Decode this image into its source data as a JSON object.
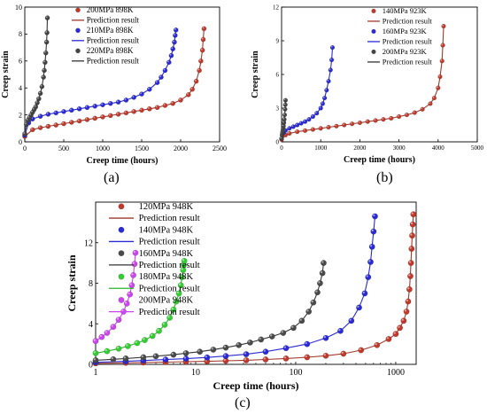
{
  "figure": {
    "panels": [
      {
        "label": "(a)",
        "chart_data": {
          "type": "scatter",
          "xlabel": "Creep time (hours)",
          "ylabel": "Creep strain",
          "xlim": [
            0,
            2500
          ],
          "ylim": [
            0,
            10
          ],
          "xticks": [
            0,
            500,
            1000,
            1500,
            2000,
            2500
          ],
          "yticks": [
            0,
            2,
            4,
            6,
            8,
            10
          ],
          "xscale": "linear",
          "grid": false,
          "legend_position": "top-right",
          "series": [
            {
              "name": "200MPa 898K",
              "color": "#c0392b",
              "pred_color": "#a0392b",
              "x": [
                0,
                100,
                200,
                300,
                400,
                500,
                600,
                700,
                800,
                900,
                1000,
                1100,
                1200,
                1300,
                1400,
                1500,
                1600,
                1700,
                1800,
                1900,
                2000,
                2100,
                2150,
                2200,
                2240,
                2260,
                2280,
                2290,
                2300
              ],
              "y": [
                0.4,
                0.9,
                1.05,
                1.15,
                1.25,
                1.35,
                1.45,
                1.55,
                1.65,
                1.75,
                1.85,
                1.95,
                2.05,
                2.15,
                2.25,
                2.35,
                2.45,
                2.55,
                2.7,
                2.85,
                3.1,
                3.5,
                3.9,
                4.5,
                5.3,
                6.0,
                6.8,
                7.6,
                8.4
              ]
            },
            {
              "name": "210MPa 898K",
              "color": "#2a2ad6",
              "pred_color": "#2a2ad6",
              "x": [
                0,
                50,
                100,
                200,
                300,
                400,
                500,
                600,
                700,
                800,
                900,
                1000,
                1100,
                1200,
                1300,
                1400,
                1500,
                1600,
                1700,
                1750,
                1800,
                1850,
                1880,
                1900,
                1920,
                1930,
                1940
              ],
              "y": [
                0.5,
                1.4,
                1.7,
                1.9,
                2.05,
                2.15,
                2.25,
                2.35,
                2.45,
                2.55,
                2.65,
                2.75,
                2.85,
                2.95,
                3.1,
                3.3,
                3.55,
                3.9,
                4.4,
                4.8,
                5.3,
                5.9,
                6.4,
                6.9,
                7.4,
                7.9,
                8.3
              ]
            },
            {
              "name": "220MPa 898K",
              "color": "#444444",
              "pred_color": "#333333",
              "x": [
                0,
                20,
                40,
                60,
                80,
                100,
                120,
                140,
                160,
                180,
                200,
                220,
                240,
                250,
                260,
                270,
                280,
                285,
                290
              ],
              "y": [
                0.6,
                1.3,
                1.6,
                1.8,
                2.0,
                2.2,
                2.4,
                2.6,
                2.9,
                3.2,
                3.6,
                4.1,
                4.8,
                5.3,
                5.9,
                6.6,
                7.4,
                8.1,
                9.2
              ]
            }
          ],
          "prediction_label": "Prediction result"
        }
      },
      {
        "label": "(b)",
        "chart_data": {
          "type": "scatter",
          "xlabel": "Creep time (hours)",
          "ylabel": "Creep strain",
          "xlim": [
            0,
            5000
          ],
          "ylim": [
            0,
            12
          ],
          "xticks": [
            0,
            1000,
            2000,
            3000,
            4000,
            5000
          ],
          "yticks": [
            0,
            3,
            6,
            9,
            12
          ],
          "xscale": "linear",
          "grid": false,
          "legend_position": "top-right",
          "series": [
            {
              "name": "140MPa 923K",
              "color": "#c0392b",
              "pred_color": "#a0392b",
              "x": [
                0,
                100,
                200,
                400,
                600,
                800,
                1000,
                1200,
                1400,
                1600,
                1800,
                2000,
                2200,
                2400,
                2600,
                2800,
                3000,
                3200,
                3400,
                3600,
                3800,
                3900,
                4000,
                4050,
                4100,
                4120,
                4140
              ],
              "y": [
                0.2,
                0.6,
                0.75,
                0.9,
                1.0,
                1.1,
                1.2,
                1.3,
                1.4,
                1.5,
                1.6,
                1.7,
                1.8,
                1.9,
                2.0,
                2.1,
                2.25,
                2.4,
                2.6,
                2.9,
                3.4,
                3.9,
                4.8,
                5.8,
                7.2,
                8.6,
                10.3
              ]
            },
            {
              "name": "160MPa 923K",
              "color": "#2a2ad6",
              "pred_color": "#2a2ad6",
              "x": [
                0,
                50,
                100,
                200,
                300,
                400,
                500,
                600,
                700,
                800,
                900,
                1000,
                1050,
                1100,
                1150,
                1200,
                1250,
                1280,
                1300
              ],
              "y": [
                0.3,
                0.8,
                1.0,
                1.2,
                1.35,
                1.5,
                1.65,
                1.8,
                2.0,
                2.25,
                2.55,
                3.0,
                3.4,
                3.9,
                4.6,
                5.4,
                6.4,
                7.3,
                8.4
              ]
            },
            {
              "name": "200MPa 923K",
              "color": "#444444",
              "pred_color": "#333333",
              "x": [
                0,
                10,
                20,
                30,
                40,
                50,
                60,
                70,
                80,
                90,
                95,
                100
              ],
              "y": [
                0.3,
                0.6,
                0.8,
                1.0,
                1.2,
                1.4,
                1.7,
                2.0,
                2.4,
                2.9,
                3.3,
                3.7
              ]
            }
          ],
          "prediction_label": "Prediction result"
        }
      },
      {
        "label": "(c)",
        "chart_data": {
          "type": "scatter",
          "xlabel": "Creep time (hours)",
          "ylabel": "Creep strain",
          "xlim": [
            1,
            1600
          ],
          "ylim": [
            0,
            16
          ],
          "xticks": [
            1,
            10,
            100,
            1000
          ],
          "yticks": [
            0,
            4,
            8,
            12
          ],
          "xscale": "log",
          "grid": false,
          "legend_position": "top-left",
          "series": [
            {
              "name": "120MPa 948K",
              "color": "#c0392b",
              "pred_color": "#a0392b",
              "x": [
                1,
                2,
                3,
                5,
                8,
                13,
                20,
                32,
                50,
                80,
                130,
                200,
                300,
                450,
                650,
                850,
                1000,
                1100,
                1200,
                1280,
                1330,
                1370,
                1400,
                1420,
                1440,
                1460,
                1480,
                1500
              ],
              "y": [
                0.1,
                0.15,
                0.18,
                0.22,
                0.26,
                0.3,
                0.35,
                0.4,
                0.48,
                0.58,
                0.7,
                0.85,
                1.05,
                1.4,
                1.9,
                2.5,
                3.0,
                3.6,
                4.3,
                5.2,
                6.2,
                7.4,
                8.7,
                10.0,
                11.4,
                12.7,
                13.8,
                14.8
              ]
            },
            {
              "name": "140MPa 948K",
              "color": "#2a2ad6",
              "pred_color": "#2a2ad6",
              "x": [
                1,
                2,
                3,
                5,
                8,
                13,
                20,
                32,
                50,
                80,
                130,
                200,
                280,
                360,
                430,
                490,
                530,
                560,
                580,
                600,
                620
              ],
              "y": [
                0.2,
                0.3,
                0.38,
                0.47,
                0.56,
                0.68,
                0.82,
                1.0,
                1.25,
                1.6,
                2.0,
                2.6,
                3.3,
                4.3,
                5.6,
                7.0,
                8.6,
                10.1,
                11.6,
                13.1,
                14.6
              ]
            },
            {
              "name": "160MPa 948K",
              "color": "#4a4a4a",
              "pred_color": "#333333",
              "x": [
                1,
                1.5,
                2,
                3,
                4,
                6,
                8,
                11,
                15,
                20,
                27,
                35,
                45,
                58,
                75,
                95,
                115,
                135,
                150,
                165,
                175,
                185,
                190
              ],
              "y": [
                0.4,
                0.5,
                0.58,
                0.7,
                0.8,
                0.95,
                1.1,
                1.25,
                1.45,
                1.65,
                1.9,
                2.15,
                2.45,
                2.75,
                3.1,
                3.6,
                4.3,
                5.2,
                6.1,
                7.1,
                8.0,
                9.0,
                10.0
              ]
            },
            {
              "name": "180MPa 948K",
              "color": "#33cc33",
              "pred_color": "#2ab52a",
              "x": [
                1,
                1.3,
                1.7,
                2.1,
                2.6,
                3.1,
                3.7,
                4.3,
                4.9,
                5.5,
                6.0,
                6.4,
                6.8,
                7.1,
                7.3,
                7.5,
                7.6,
                7.7
              ],
              "y": [
                1.1,
                1.3,
                1.55,
                1.8,
                2.1,
                2.4,
                2.8,
                3.3,
                3.9,
                4.6,
                5.4,
                6.2,
                7.0,
                7.8,
                8.6,
                9.3,
                9.8,
                10.2
              ]
            },
            {
              "name": "200MPa 948K",
              "color": "#cc44ee",
              "pred_color": "#cc44ee",
              "x": [
                1,
                1.15,
                1.3,
                1.5,
                1.7,
                1.9,
                2.05,
                2.2,
                2.3,
                2.38,
                2.45,
                2.5
              ],
              "y": [
                2.3,
                2.7,
                3.1,
                3.7,
                4.4,
                5.2,
                6.0,
                6.9,
                7.8,
                8.8,
                9.9,
                11.0
              ]
            }
          ],
          "prediction_label": "Prediction result"
        }
      }
    ]
  }
}
